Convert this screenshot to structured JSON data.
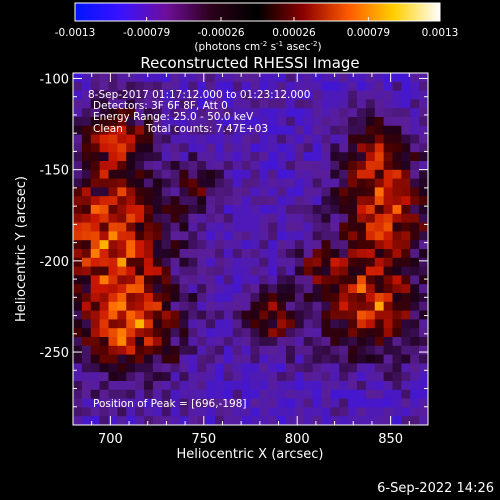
{
  "colorbar": {
    "tick_labels": [
      "-0.0013",
      "-0.00079",
      "-0.00026",
      "0.00026",
      "0.00079",
      "0.0013"
    ],
    "range": [
      -0.0013,
      0.0013
    ],
    "colors": [
      "#0014ff",
      "#3a12ff",
      "#6f0e9c",
      "#2a0018",
      "#000000",
      "#8a0000",
      "#ff5a00",
      "#ffd000",
      "#ffffff"
    ]
  },
  "chart_data": {
    "type": "heatmap",
    "title": "Reconstructed RHESSI Image",
    "xlabel": "Heliocentric X (arcsec)",
    "ylabel": "Heliocentric Y (arcsec)",
    "colorbar_unit": {
      "base": "(photons cm",
      "exp1": "-2",
      "mid": " s",
      "exp2": "-1",
      "tail": " asec",
      "exp3": "-2",
      "close": ")"
    },
    "xlim": [
      680,
      870
    ],
    "ylim": [
      -290,
      -97
    ],
    "xticks": [
      700,
      750,
      800,
      850
    ],
    "yticks": [
      -100,
      -150,
      -200,
      -250
    ],
    "annotations": {
      "time": "8-Sep-2017 01:17:12.000 to 01:23:12.000",
      "detectors": "Detectors: 3F 6F 8F, Att 0",
      "energy": "Energy Range: 25.0 - 50.0 keV",
      "algorithm": "Clean",
      "counts": "Total counts: 7.47E+03",
      "peak": "Position of Peak = [696,-198]"
    }
  },
  "footer": {
    "timestamp": "6-Sep-2022 14:26"
  }
}
